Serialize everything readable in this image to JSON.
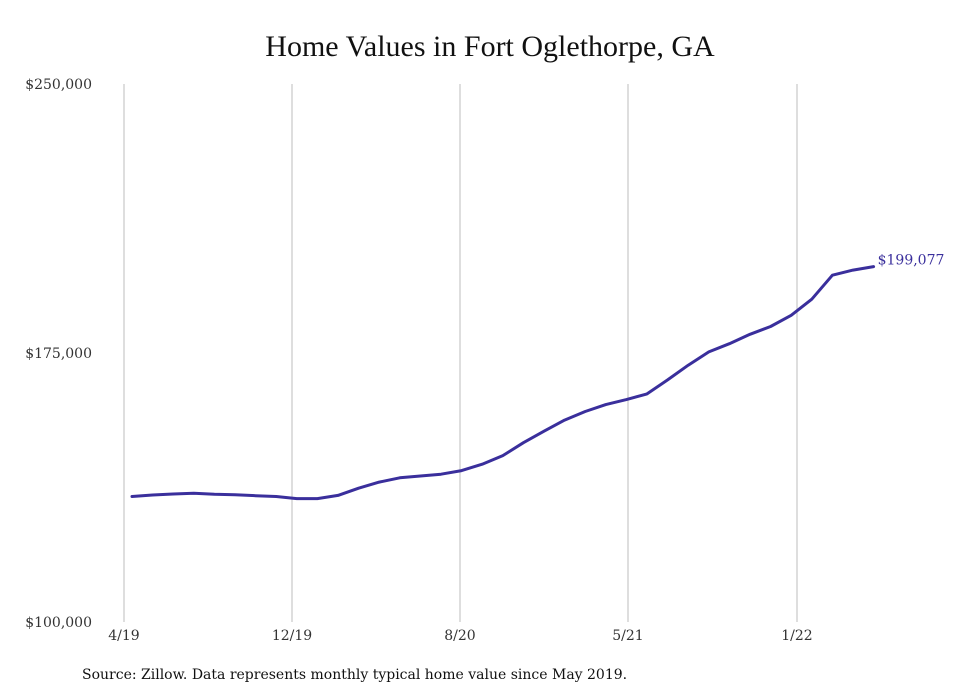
{
  "chart_data": {
    "type": "line",
    "title": "Home Values in Fort Oglethorpe, GA",
    "xlabel": "",
    "ylabel": "",
    "ylim": [
      100000,
      250000
    ],
    "yticks": [
      100000,
      175000,
      250000
    ],
    "ytick_labels": [
      "$100,000",
      "$175,000",
      "$250,000"
    ],
    "xticks": [
      "4/19",
      "12/19",
      "8/20",
      "5/21",
      "1/22"
    ],
    "x": [
      "2019-05",
      "2019-06",
      "2019-07",
      "2019-08",
      "2019-09",
      "2019-10",
      "2019-11",
      "2019-12",
      "2020-01",
      "2020-02",
      "2020-03",
      "2020-04",
      "2020-05",
      "2020-06",
      "2020-07",
      "2020-08",
      "2020-09",
      "2020-10",
      "2020-11",
      "2020-12",
      "2021-01",
      "2021-02",
      "2021-03",
      "2021-04",
      "2021-05",
      "2021-06",
      "2021-07",
      "2021-08",
      "2021-09",
      "2021-10",
      "2021-11",
      "2021-12",
      "2022-01",
      "2022-02",
      "2022-03",
      "2022-04",
      "2022-05"
    ],
    "series": [
      {
        "color": "#3a2f9c",
        "values": [
          135000,
          135400,
          135700,
          135900,
          135600,
          135500,
          135200,
          135000,
          134400,
          134400,
          135300,
          137300,
          139000,
          140200,
          140700,
          141200,
          142200,
          144000,
          146400,
          150000,
          153200,
          156300,
          158700,
          160600,
          162000,
          163600,
          167500,
          171600,
          175300,
          177600,
          180200,
          182400,
          185500,
          190000,
          196700,
          198100,
          199077
        ]
      }
    ],
    "end_label": "$199,077",
    "grid": "vertical",
    "legend": "none"
  },
  "source_note": "Source: Zillow. Data represents monthly typical home value since May 2019."
}
